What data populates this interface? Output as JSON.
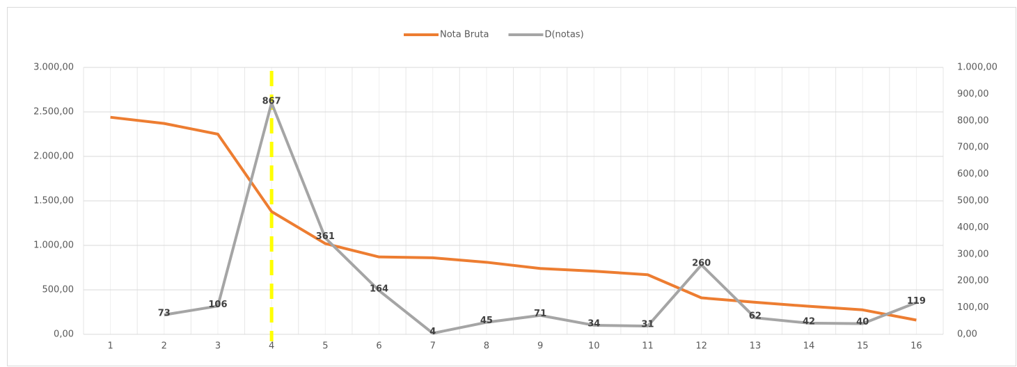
{
  "chart_data": {
    "type": "line",
    "categories": [
      "1",
      "2",
      "3",
      "4",
      "5",
      "6",
      "7",
      "8",
      "9",
      "10",
      "11",
      "12",
      "13",
      "14",
      "15",
      "16"
    ],
    "series": [
      {
        "name": "Nota Bruta",
        "color": "#ed7d31",
        "values": [
          2440,
          2370,
          2250,
          1380,
          1020,
          870,
          860,
          810,
          740,
          710,
          670,
          410,
          360,
          315,
          275,
          160
        ]
      },
      {
        "name": "D(notas)",
        "color": "#a5a5a5",
        "axis": "y2",
        "values": [
          null,
          73,
          106,
          867,
          361,
          164,
          4,
          45,
          71,
          34,
          31,
          260,
          62,
          42,
          40,
          119
        ]
      }
    ],
    "ylim": [
      0,
      3000
    ],
    "yticks": [
      {
        "value": 0,
        "label": "0,00"
      },
      {
        "value": 500,
        "label": "500,00"
      },
      {
        "value": 1000,
        "label": "1.000,00"
      },
      {
        "value": 1500,
        "label": "1.500,00"
      },
      {
        "value": 2000,
        "label": "2.000,00"
      },
      {
        "value": 2500,
        "label": "2.500,00"
      },
      {
        "value": 3000,
        "label": "3.000,00"
      }
    ],
    "y2lim": [
      0,
      1000
    ],
    "y2ticks": [
      {
        "value": 0,
        "label": "0,00"
      },
      {
        "value": 100,
        "label": "100,00"
      },
      {
        "value": 200,
        "label": "200,00"
      },
      {
        "value": 300,
        "label": "300,00"
      },
      {
        "value": 400,
        "label": "400,00"
      },
      {
        "value": 500,
        "label": "500,00"
      },
      {
        "value": 600,
        "label": "600,00"
      },
      {
        "value": 700,
        "label": "700,00"
      },
      {
        "value": 800,
        "label": "800,00"
      },
      {
        "value": 900,
        "label": "900,00"
      },
      {
        "value": 1000,
        "label": "1.000,00"
      }
    ],
    "grid": true,
    "legend": "top"
  }
}
